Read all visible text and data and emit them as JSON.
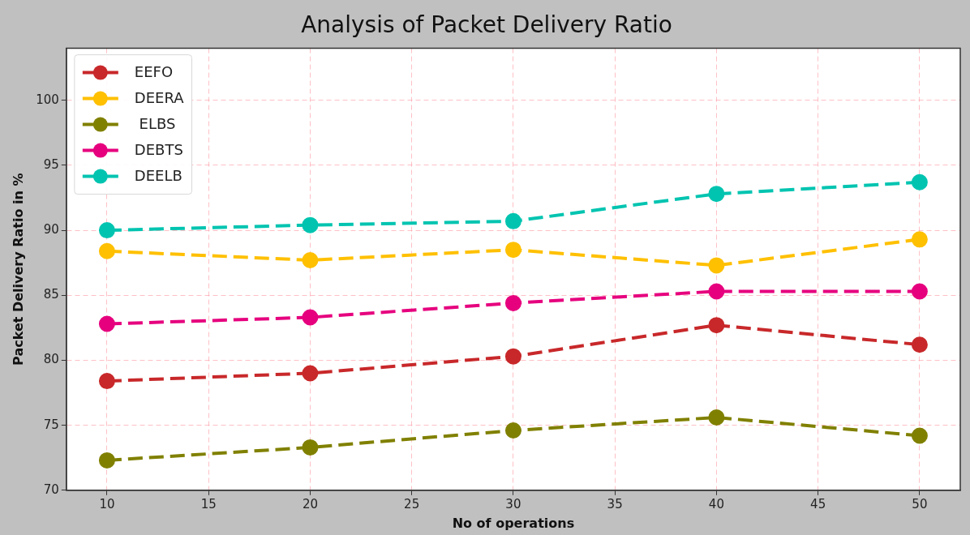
{
  "chart_data": {
    "type": "line",
    "title": "Analysis of Packet Delivery Ratio",
    "xlabel": "No of operations",
    "ylabel": "Packet Delivery Ratio in %",
    "x": [
      10,
      20,
      30,
      40,
      50
    ],
    "series": [
      {
        "name": "EEFO",
        "color": "#c8282a",
        "values": [
          78.4,
          79.0,
          80.3,
          82.7,
          81.2
        ]
      },
      {
        "name": "DEERA",
        "color": "#ffc000",
        "values": [
          88.4,
          87.7,
          88.5,
          87.3,
          89.3
        ]
      },
      {
        "name": " ELBS",
        "color": "#808000",
        "values": [
          72.3,
          73.3,
          74.6,
          75.6,
          74.2
        ]
      },
      {
        "name": "DEBTS",
        "color": "#e6007e",
        "values": [
          82.8,
          83.3,
          84.4,
          85.3,
          85.3
        ]
      },
      {
        "name": "DEELB",
        "color": "#00c4b0",
        "values": [
          90.0,
          90.4,
          90.7,
          92.8,
          93.7
        ]
      }
    ],
    "xlim": [
      8,
      52
    ],
    "xticks": [
      10,
      15,
      20,
      25,
      30,
      35,
      40,
      45,
      50
    ],
    "ylim": [
      70,
      104
    ],
    "yticks": [
      70,
      75,
      80,
      85,
      90,
      95,
      100
    ],
    "grid": true,
    "legend": "top left",
    "marker": "circle",
    "line_style": "dashed"
  }
}
